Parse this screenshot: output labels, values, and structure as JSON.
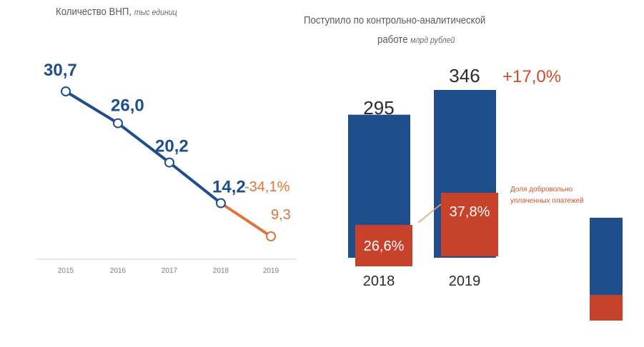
{
  "chart_data": [
    {
      "type": "line",
      "title": "Количество ВНП,",
      "unit": "тыс единиц",
      "x": [
        "2015",
        "2016",
        "2017",
        "2018",
        "2019"
      ],
      "values": [
        30.7,
        26.0,
        20.2,
        14.2,
        9.3
      ],
      "value_labels": [
        "30,7",
        "26,0",
        "20,2",
        "14,2",
        "9,3"
      ],
      "change_label": "-34,1%",
      "ylim": [
        0,
        35
      ],
      "colors": {
        "main": "#1f4e8c",
        "last_segment": "#e0733a",
        "axis": "#d0d0d0"
      }
    },
    {
      "type": "bar",
      "title_line1": "Поступило по контрольно-аналитической",
      "title_line2": "работе",
      "unit": "млрд рублей",
      "categories": [
        "2018",
        "2019"
      ],
      "values": [
        295,
        346
      ],
      "value_labels": [
        "295",
        "346"
      ],
      "share_values": [
        26.6,
        37.8
      ],
      "share_labels": [
        "26,6%",
        "37,8%"
      ],
      "change_label": "+17,0%",
      "legend_text_line1": "Доля добровольно",
      "legend_text_line2": "уплаченных платежей",
      "ylim": [
        0,
        360
      ],
      "colors": {
        "total": "#1f4e8c",
        "share": "#c8412b",
        "change": "#d24a2a"
      }
    }
  ]
}
